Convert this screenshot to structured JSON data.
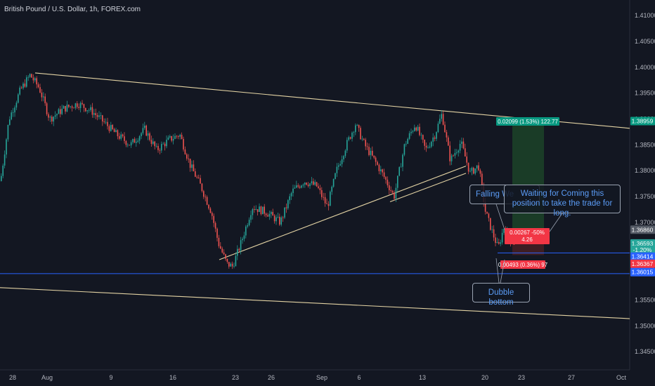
{
  "chart_title": "British Pound / U.S. Dollar, 1h, FOREX.com",
  "chart_data": {
    "type": "candlestick",
    "title": "British Pound / U.S. Dollar, 1h, FOREX.com",
    "symbol": "GBPUSD",
    "interval": "1h",
    "source": "FOREX.com",
    "ylim": [
      1.3415,
      1.413
    ],
    "x_tick_labels": [
      "28",
      "Aug",
      "9",
      "16",
      "23",
      "26",
      "Sep",
      "6",
      "13",
      "20",
      "23",
      "27",
      "Oct"
    ],
    "y_tick_labels": [
      "1.41000",
      "1.40500",
      "1.40000",
      "1.39500",
      "1.39000",
      "1.38500",
      "1.38000",
      "1.37500",
      "1.37000",
      "1.36500",
      "1.36000",
      "1.35500",
      "1.35000",
      "1.34500"
    ],
    "y_ticks": [
      1.41,
      1.405,
      1.4,
      1.395,
      1.39,
      1.385,
      1.38,
      1.375,
      1.37,
      1.365,
      1.36,
      1.355,
      1.35,
      1.345
    ],
    "price_path": [
      [
        0,
        1.378
      ],
      [
        12,
        1.39
      ],
      [
        28,
        1.3955
      ],
      [
        42,
        1.3985
      ],
      [
        55,
        1.396
      ],
      [
        70,
        1.39
      ],
      [
        90,
        1.392
      ],
      [
        110,
        1.393
      ],
      [
        130,
        1.3915
      ],
      [
        150,
        1.389
      ],
      [
        165,
        1.387
      ],
      [
        185,
        1.385
      ],
      [
        205,
        1.388
      ],
      [
        222,
        1.384
      ],
      [
        240,
        1.386
      ],
      [
        255,
        1.387
      ],
      [
        270,
        1.381
      ],
      [
        285,
        1.377
      ],
      [
        300,
        1.372
      ],
      [
        310,
        1.366
      ],
      [
        322,
        1.362
      ],
      [
        330,
        1.3615
      ],
      [
        342,
        1.366
      ],
      [
        358,
        1.373
      ],
      [
        378,
        1.372
      ],
      [
        398,
        1.37
      ],
      [
        415,
        1.376
      ],
      [
        432,
        1.378
      ],
      [
        450,
        1.377
      ],
      [
        465,
        1.373
      ],
      [
        478,
        1.38
      ],
      [
        492,
        1.385
      ],
      [
        505,
        1.389
      ],
      [
        518,
        1.385
      ],
      [
        532,
        1.382
      ],
      [
        545,
        1.379
      ],
      [
        560,
        1.375
      ],
      [
        575,
        1.385
      ],
      [
        590,
        1.389
      ],
      [
        605,
        1.384
      ],
      [
        618,
        1.387
      ],
      [
        628,
        1.391
      ],
      [
        640,
        1.382
      ],
      [
        655,
        1.3855
      ],
      [
        668,
        1.3795
      ],
      [
        680,
        1.381
      ],
      [
        690,
        1.372
      ],
      [
        700,
        1.368
      ],
      [
        708,
        1.365
      ],
      [
        716,
        1.369
      ],
      [
        724,
        1.367
      ],
      [
        732,
        1.3658
      ]
    ],
    "trendlines": [
      {
        "points": [
          [
            50,
            1.3989
          ],
          [
            896,
            1.3882
          ]
        ],
        "color": "#e3d3a4"
      },
      {
        "points": [
          [
            0,
            1.3574
          ],
          [
            896,
            1.3514
          ]
        ],
        "color": "#e3d3a4"
      },
      {
        "points": [
          [
            312,
            1.3628
          ],
          [
            663,
            1.3809
          ]
        ],
        "color": "#e3d3a4"
      },
      {
        "points": [
          [
            555,
            1.374
          ],
          [
            663,
            1.3795
          ]
        ],
        "color": "#e3d3a4"
      }
    ],
    "horizontal_lines": [
      {
        "price": 1.3641,
        "x_start": 708,
        "color": "#2962ff"
      },
      {
        "price": 1.3601,
        "x_start": 0,
        "color": "#2962ff"
      }
    ],
    "position": {
      "direction": "long",
      "entry": 1.3686,
      "target": 1.3896,
      "stop": 1.3637,
      "target_label": "0.02099 (1.53%) 122.77",
      "entry_label": "0.00267 -50%",
      "entry_label2": "4.26",
      "stop_label": "0.00493 (0.36%) 97"
    },
    "price_labels": [
      {
        "text": "1.38959",
        "price": 1.38959,
        "bg": "#089981"
      },
      {
        "text": "1.36860",
        "price": 1.3686,
        "bg": "#555b66"
      },
      {
        "text": "1.36593",
        "price": 1.36593,
        "bg": "#26a69a"
      },
      {
        "text": "-1.20%",
        "price": 1.36473,
        "bg": "#26a69a"
      },
      {
        "text": "1.36414",
        "price": 1.3634,
        "bg": "#2962ff"
      },
      {
        "text": "1.36367",
        "price": 1.362,
        "bg": "#f23645"
      },
      {
        "text": "1.36015",
        "price": 1.3604,
        "bg": "#2962ff"
      }
    ],
    "colors": {
      "background": "#131722",
      "up": "#26a69a",
      "down": "#ef5350",
      "trendline": "#e3d3a4",
      "level": "#2962ff",
      "profit_zone": "#1d4a2a",
      "loss_zone": "#4a1f24"
    }
  },
  "annotations": {
    "falling_wedge": "Falling We",
    "waiting": "Waiting for Coming this position to take the trade for long.",
    "double_bottom": "Dubble bottom"
  }
}
